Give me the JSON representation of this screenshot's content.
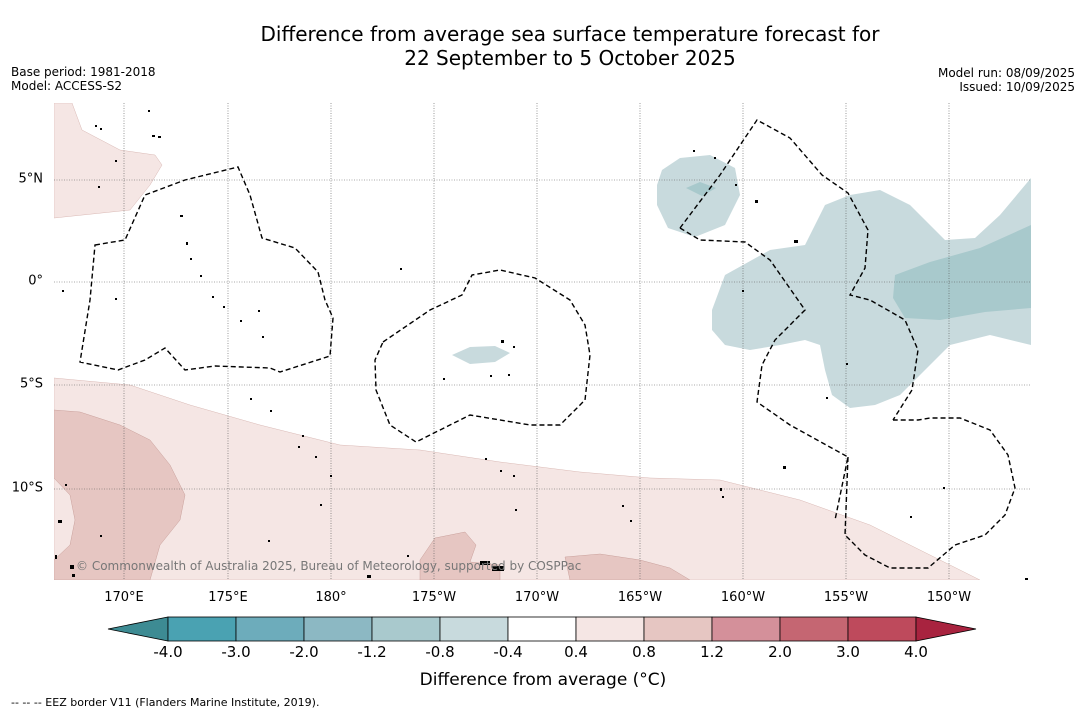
{
  "title": {
    "line1": "Difference from average sea surface temperature forecast for",
    "line2": "22 September to 5 October 2025"
  },
  "meta": {
    "base_period": "Base period: 1981-2018",
    "model": "Model: ACCESS-S2",
    "model_run": "Model run: 08/09/2025",
    "issued": "Issued: 10/09/2025"
  },
  "map": {
    "lon_ticks": [
      "170°E",
      "175°E",
      "180°",
      "175°W",
      "170°W",
      "165°W",
      "160°W",
      "155°W",
      "150°W"
    ],
    "lat_ticks": [
      "5°N",
      "0°",
      "5°S",
      "10°S"
    ],
    "copyright": "© Commonwealth of Australia 2025, Bureau of Meteorology, supported by COSPPac",
    "colors": {
      "cool_light": "#c8dadd",
      "cool_mid": "#a8c9cc",
      "warm_light": "#f5e6e4",
      "warm_mid": "#e6c6c2",
      "eez_line": "#000000"
    }
  },
  "colorbar": {
    "title": "Difference from average (°C)",
    "labels": [
      "-4.0",
      "-3.0",
      "-2.0",
      "-1.2",
      "-0.8",
      "-0.4",
      "0.4",
      "0.8",
      "1.2",
      "2.0",
      "3.0",
      "4.0"
    ],
    "colors": [
      "#3d8b93",
      "#4aa2b2",
      "#6dacbb",
      "#8cb8c3",
      "#a9c9cd",
      "#c8dadd",
      "#ffffff",
      "#f5e6e4",
      "#e6c6c2",
      "#d4909a",
      "#c56672",
      "#be4a5c",
      "#a8233f"
    ]
  },
  "footnote": "-- -- -- EEZ border V11 (Flanders Marine Institute, 2019)."
}
